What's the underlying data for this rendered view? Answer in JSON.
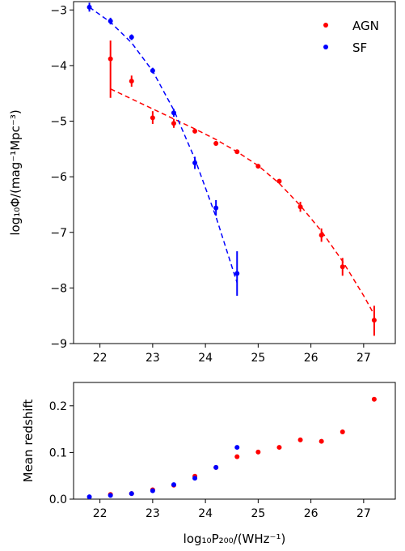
{
  "chart_data": [
    {
      "type": "scatter",
      "panel": "luminosity-function",
      "xlim": [
        21.5,
        27.6
      ],
      "ylim": [
        -9.0,
        -2.85
      ],
      "x_ticks": [
        "22",
        "23",
        "24",
        "25",
        "26",
        "27"
      ],
      "y_ticks": [
        "−3",
        "−4",
        "−5",
        "−6",
        "−7",
        "−8",
        "−9"
      ],
      "ylabel": "log₁₀Φ/(mag⁻¹Mpc⁻³)",
      "grid": false,
      "legend_position": "top-right",
      "series": [
        {
          "name": "AGN",
          "color": "#ff0000",
          "x": [
            22.2,
            22.6,
            23.0,
            23.4,
            23.8,
            24.2,
            24.6,
            25.0,
            25.4,
            25.8,
            26.2,
            26.6,
            27.2
          ],
          "y": [
            -3.88,
            -4.28,
            -4.94,
            -5.04,
            -5.18,
            -5.4,
            -5.55,
            -5.81,
            -6.08,
            -6.54,
            -7.05,
            -7.62,
            -8.58
          ],
          "yerr_low": [
            -4.58,
            -4.38,
            -5.05,
            -5.12,
            -5.22,
            -5.44,
            -5.58,
            -5.84,
            -6.12,
            -6.63,
            -7.17,
            -7.78,
            -8.86
          ],
          "yerr_high": [
            -3.55,
            -4.18,
            -4.82,
            -4.96,
            -5.14,
            -5.36,
            -5.52,
            -5.78,
            -6.04,
            -6.45,
            -6.93,
            -7.46,
            -8.32
          ],
          "fit_x": [
            22.2,
            22.6,
            23.0,
            23.4,
            23.8,
            24.2,
            24.6,
            25.0,
            25.4,
            25.8,
            26.2,
            26.6,
            27.0,
            27.2
          ],
          "fit_y": [
            -4.42,
            -4.6,
            -4.78,
            -4.96,
            -5.14,
            -5.33,
            -5.55,
            -5.8,
            -6.12,
            -6.52,
            -6.98,
            -7.52,
            -8.14,
            -8.48
          ]
        },
        {
          "name": "SF",
          "color": "#0000ff",
          "x": [
            21.8,
            22.2,
            22.6,
            23.0,
            23.4,
            23.8,
            24.2,
            24.6
          ],
          "y": [
            -2.95,
            -3.2,
            -3.49,
            -4.09,
            -4.85,
            -5.75,
            -6.56,
            -7.74
          ],
          "yerr_low": [
            -3.03,
            -3.26,
            -3.54,
            -4.14,
            -4.92,
            -5.86,
            -6.7,
            -8.14
          ],
          "yerr_high": [
            -2.87,
            -3.14,
            -3.44,
            -4.04,
            -4.78,
            -5.64,
            -6.42,
            -7.34
          ],
          "fit_x": [
            21.8,
            22.2,
            22.6,
            23.0,
            23.4,
            23.8,
            24.2,
            24.6
          ],
          "fit_y": [
            -2.95,
            -3.22,
            -3.59,
            -4.1,
            -4.8,
            -5.68,
            -6.72,
            -7.91
          ]
        }
      ]
    },
    {
      "type": "scatter",
      "panel": "mean-redshift",
      "xlim": [
        21.5,
        27.6
      ],
      "ylim": [
        0.0,
        0.25
      ],
      "x_ticks": [
        "22",
        "23",
        "24",
        "25",
        "26",
        "27"
      ],
      "y_ticks": [
        "0.0",
        "0.1",
        "0.2"
      ],
      "xlabel": "log₁₀P₂₀₀/(WHz⁻¹)",
      "ylabel": "Mean redshift",
      "series": [
        {
          "name": "AGN",
          "color": "#ff0000",
          "x": [
            22.2,
            22.6,
            23.0,
            23.4,
            23.8,
            24.2,
            24.6,
            25.0,
            25.4,
            25.8,
            26.2,
            26.6,
            27.2
          ],
          "y": [
            0.01,
            0.012,
            0.02,
            0.03,
            0.049,
            0.068,
            0.091,
            0.101,
            0.111,
            0.127,
            0.124,
            0.144,
            0.214
          ]
        },
        {
          "name": "SF",
          "color": "#0000ff",
          "x": [
            21.8,
            22.2,
            22.6,
            23.0,
            23.4,
            23.8,
            24.2,
            24.6
          ],
          "y": [
            0.005,
            0.008,
            0.012,
            0.018,
            0.031,
            0.045,
            0.068,
            0.111
          ]
        }
      ]
    }
  ]
}
